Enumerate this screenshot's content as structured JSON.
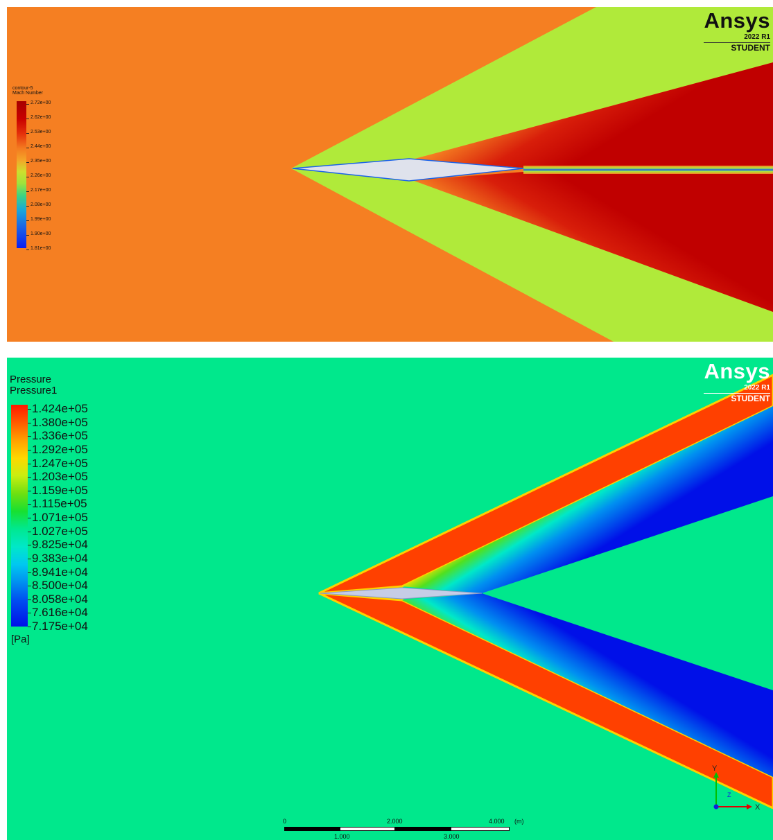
{
  "top_plot": {
    "legend": {
      "name": "contour-5",
      "variable": "Mach Number",
      "ticks": [
        "2.72e+00",
        "2.62e+00",
        "2.53e+00",
        "2.44e+00",
        "2.35e+00",
        "2.26e+00",
        "2.17e+00",
        "2.08e+00",
        "1.99e+00",
        "1.90e+00",
        "1.81e+00"
      ]
    },
    "brand": {
      "name": "Ansys",
      "version": "2022 R1",
      "edition": "STUDENT"
    }
  },
  "bottom_plot": {
    "legend": {
      "name": "Pressure",
      "variable": "Pressure1",
      "ticks": [
        "1.424e+05",
        "1.380e+05",
        "1.336e+05",
        "1.292e+05",
        "1.247e+05",
        "1.203e+05",
        "1.159e+05",
        "1.115e+05",
        "1.071e+05",
        "1.027e+05",
        "9.825e+04",
        "9.383e+04",
        "8.941e+04",
        "8.500e+04",
        "8.058e+04",
        "7.616e+04",
        "7.175e+04"
      ],
      "unit": "[Pa]"
    },
    "brand": {
      "name": "Ansys",
      "version": "2022 R1",
      "edition": "STUDENT"
    },
    "scale": {
      "top_labels": [
        "0",
        "2.000",
        "4.000"
      ],
      "bottom_labels": [
        "1.000",
        "3.000"
      ],
      "unit": "(m)"
    },
    "axes": {
      "y": "Y",
      "x": "X",
      "z": "Z"
    }
  },
  "colors": {
    "mach_freestream": "#f57f22",
    "mach_shock": "#b0ea3a",
    "mach_expansion": "#c80000",
    "pressure_freestream": "#00e88c",
    "pressure_shock": "#ff4000",
    "pressure_expansion": "#0018e8"
  }
}
